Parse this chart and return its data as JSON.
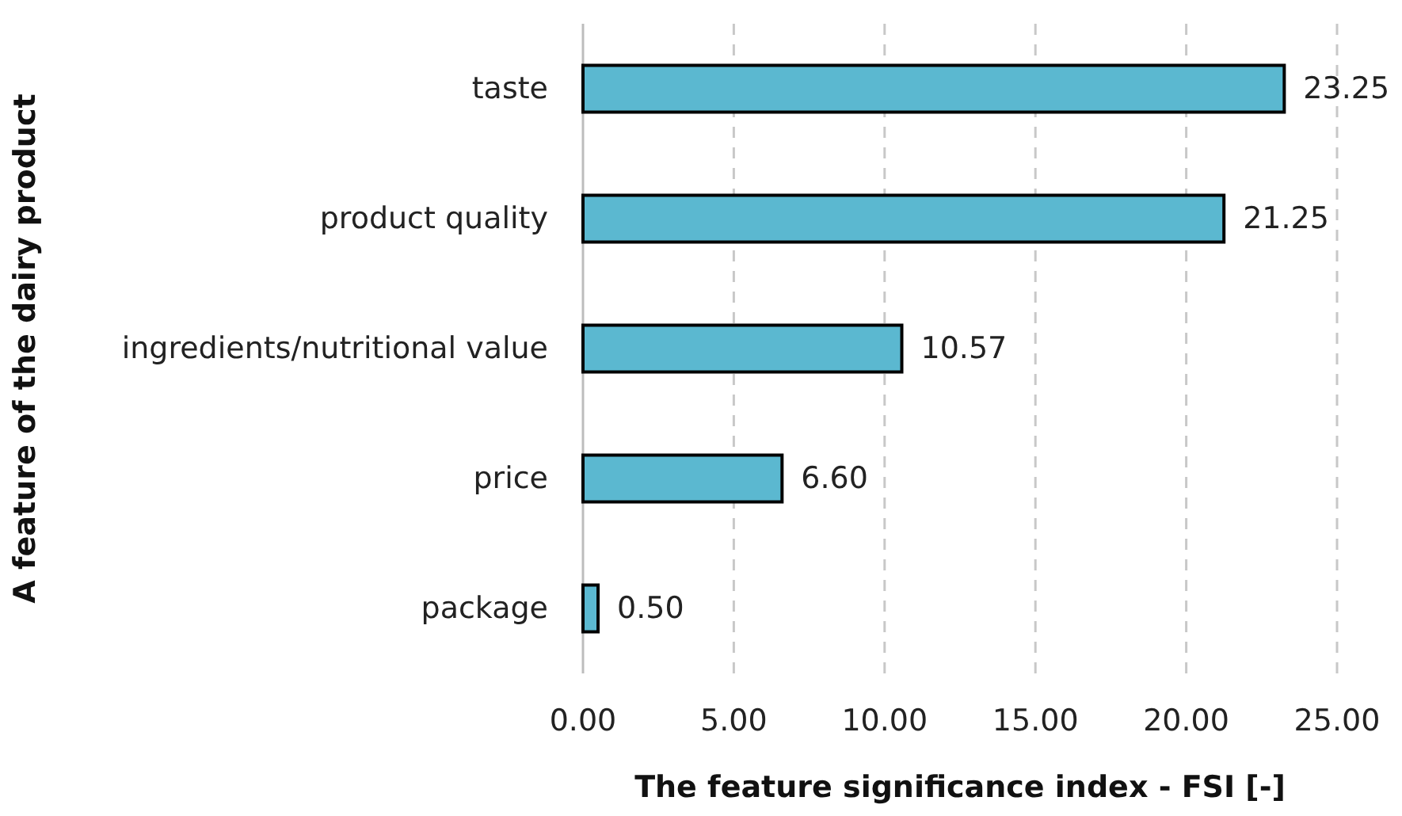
{
  "chart_data": {
    "type": "bar",
    "orientation": "horizontal",
    "xlabel": "The feature significance index - FSI [-]",
    "ylabel": "A feature of the dairy product",
    "categories": [
      "taste",
      "product quality",
      "ingredients/nutritional value",
      "price",
      "package"
    ],
    "values": [
      23.25,
      21.25,
      10.57,
      6.6,
      0.5
    ],
    "value_labels": [
      "23.25",
      "21.25",
      "10.57",
      "6.60",
      "0.50"
    ],
    "color": "#5bb8d0",
    "xlim": [
      0,
      25
    ],
    "xticks": [
      {
        "value": 0,
        "label": "0.00"
      },
      {
        "value": 5,
        "label": "5.00"
      },
      {
        "value": 10,
        "label": "10.00"
      },
      {
        "value": 15,
        "label": "15.00"
      },
      {
        "value": 20,
        "label": "20.00"
      },
      {
        "value": 25,
        "label": "25.00"
      }
    ],
    "grid": "x"
  }
}
